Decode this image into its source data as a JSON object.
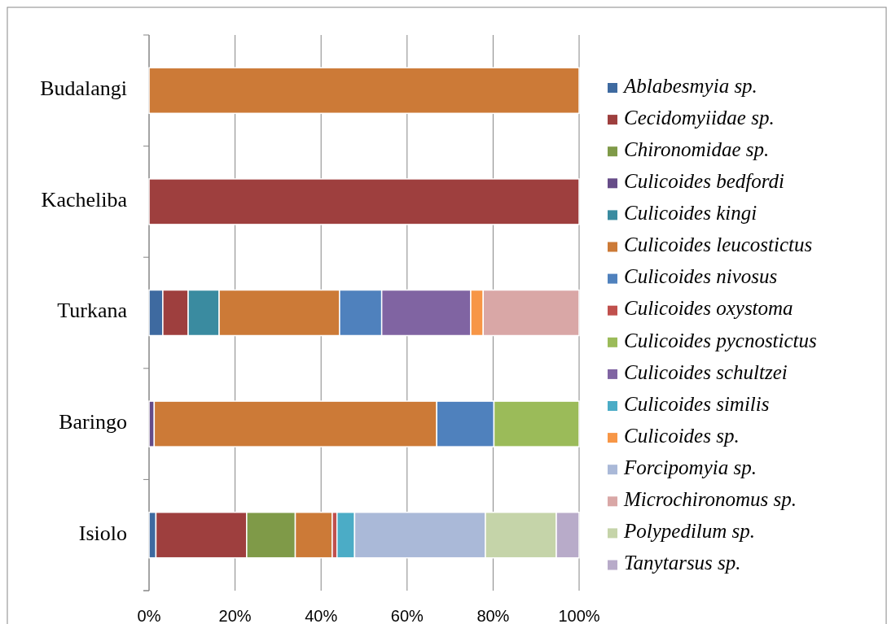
{
  "chart_data": {
    "type": "bar",
    "orientation": "horizontal",
    "stacked": true,
    "categories": [
      "Budalangi",
      "Kacheliba",
      "Turkana",
      "Baringo",
      "Isiolo"
    ],
    "xlim": [
      0,
      100
    ],
    "xticks": [
      {
        "value": 0,
        "label": "0%"
      },
      {
        "value": 20,
        "label": "20%"
      },
      {
        "value": 40,
        "label": "40%"
      },
      {
        "value": 60,
        "label": "60%"
      },
      {
        "value": 80,
        "label": "80%"
      },
      {
        "value": 100,
        "label": "100%"
      }
    ],
    "grid": "x",
    "legend": "right",
    "series": [
      {
        "name": "Ablabesmyia sp.",
        "color": "#3e6aa0",
        "values": [
          null,
          null,
          3.2,
          null,
          1.6
        ]
      },
      {
        "name": "Cecidomyiidae sp.",
        "color": "#9e3f3e",
        "values": [
          null,
          100,
          5.9,
          null,
          21.1
        ]
      },
      {
        "name": "Chironomidae sp.",
        "color": "#7f9a48",
        "values": [
          null,
          null,
          null,
          null,
          11.3
        ]
      },
      {
        "name": "Culicoides bedfordi",
        "color": "#664c88",
        "values": [
          null,
          null,
          null,
          1.2,
          null
        ]
      },
      {
        "name": "Culicoides kingi",
        "color": "#3a8ba0",
        "values": [
          null,
          null,
          7.2,
          null,
          null
        ]
      },
      {
        "name": "Culicoides leucostictus",
        "color": "#cc7a37",
        "values": [
          100,
          null,
          28.0,
          65.7,
          8.6
        ]
      },
      {
        "name": "Culicoides nivosus",
        "color": "#4f81bd",
        "values": [
          null,
          null,
          9.8,
          13.3,
          null
        ]
      },
      {
        "name": "Culicoides oxystoma",
        "color": "#c0504d",
        "values": [
          null,
          null,
          null,
          null,
          1.1
        ]
      },
      {
        "name": "Culicoides pycnostictus",
        "color": "#9bbb59",
        "values": [
          null,
          null,
          null,
          19.8,
          null
        ]
      },
      {
        "name": "Culicoides schultzei",
        "color": "#8064a2",
        "values": [
          null,
          null,
          20.7,
          null,
          null
        ]
      },
      {
        "name": "Culicoides similis",
        "color": "#4bacc6",
        "values": [
          null,
          null,
          null,
          null,
          4.1
        ]
      },
      {
        "name": "Culicoides sp.",
        "color": "#f79646",
        "values": [
          null,
          null,
          2.9,
          null,
          null
        ]
      },
      {
        "name": "Forcipomyia sp.",
        "color": "#aab9d8",
        "values": [
          null,
          null,
          null,
          null,
          30.4
        ]
      },
      {
        "name": "Microchironomus sp.",
        "color": "#d9a7a6",
        "values": [
          null,
          null,
          22.3,
          null,
          null
        ]
      },
      {
        "name": "Polypedilum sp.",
        "color": "#c5d4a9",
        "values": [
          null,
          null,
          null,
          null,
          16.5
        ]
      },
      {
        "name": "Tanytarsus sp.",
        "color": "#b8abc9",
        "values": [
          null,
          null,
          null,
          null,
          5.3
        ]
      }
    ]
  }
}
